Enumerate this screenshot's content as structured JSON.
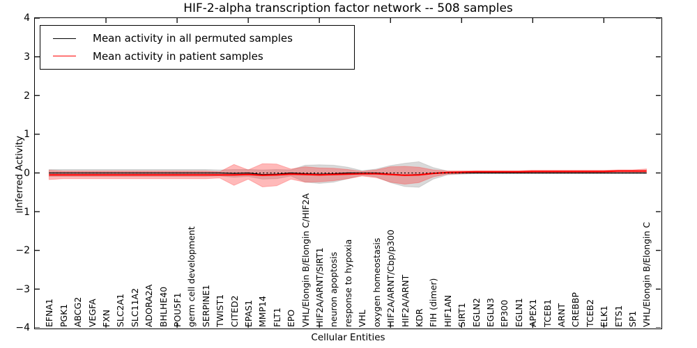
{
  "title": "HIF-2-alpha transcription factor network -- 508 samples",
  "axes": {
    "ylabel": "Inferred Activity",
    "xlabel": "Cellular Entities",
    "ytick_labels": [
      "4",
      "3",
      "2",
      "1",
      "0",
      "−1",
      "−2",
      "−3",
      "−4"
    ]
  },
  "legend": {
    "items": [
      {
        "label": "Mean activity in all permuted samples",
        "color": "#000000"
      },
      {
        "label": "Mean activity in patient samples",
        "color": "#ff0000"
      }
    ]
  },
  "chart_data": {
    "type": "line",
    "title": "HIF-2-alpha transcription factor network -- 508 samples",
    "xlabel": "Cellular Entities",
    "ylabel": "Inferred Activity",
    "ylim": [
      -4,
      4
    ],
    "yticks": [
      -4,
      -3,
      -2,
      -1,
      0,
      1,
      2,
      3,
      4
    ],
    "xtick_positions": [
      5,
      10,
      15,
      20,
      25,
      30,
      35,
      40
    ],
    "grid": false,
    "legend_position": "upper left",
    "categories": [
      "EFNA1",
      "PGK1",
      "ABCG2",
      "VEGFA",
      "FXN",
      "SLC2A1",
      "SLC11A2",
      "ADORA2A",
      "BHLHE40",
      "POU5F1",
      "germ cell development",
      "SERPINE1",
      "TWIST1",
      "CITED2",
      "EPAS1",
      "MMP14",
      "FLT1",
      "EPO",
      "VHL/Elongin B/Elongin C/HIF2A",
      "HIF2A/ARNT/SIRT1",
      "neuron apoptosis",
      "response to hypoxia",
      "VHL",
      "oxygen homeostasis",
      "HIF2A/ARNT/Cbp/p300",
      "HIF2A/ARNT",
      "KDR",
      "FIH (dimer)",
      "HIF1AN",
      "SIRT1",
      "EGLN2",
      "EGLN3",
      "EP300",
      "EGLN1",
      "APEX1",
      "TCEB1",
      "ARNT",
      "CREBBP",
      "TCEB2",
      "ELK1",
      "ETS1",
      "SP1",
      "VHL/Elongin B/Elongin C"
    ],
    "series": [
      {
        "name": "Mean activity in all permuted samples",
        "color": "#000000",
        "style": "solid",
        "values": [
          0,
          0,
          0,
          0,
          0,
          0,
          0,
          0,
          0,
          0,
          0,
          0,
          0,
          -0.01,
          0,
          -0.04,
          -0.03,
          0,
          -0.02,
          -0.03,
          -0.02,
          0,
          0,
          0,
          -0.03,
          -0.05,
          -0.04,
          -0.01,
          0,
          0,
          0,
          0,
          0,
          0,
          0,
          0,
          0,
          0,
          0,
          0,
          0,
          0,
          0
        ]
      },
      {
        "name": "Mean activity in patient samples",
        "color": "#ff0000",
        "style": "solid",
        "values": [
          -0.05,
          -0.05,
          -0.05,
          -0.05,
          -0.05,
          -0.05,
          -0.05,
          -0.05,
          -0.05,
          -0.05,
          -0.05,
          -0.05,
          -0.05,
          -0.05,
          -0.04,
          -0.06,
          -0.05,
          -0.03,
          -0.04,
          -0.05,
          -0.04,
          -0.03,
          -0.02,
          -0.02,
          -0.04,
          -0.06,
          -0.05,
          -0.01,
          0.01,
          0.02,
          0.03,
          0.03,
          0.03,
          0.03,
          0.04,
          0.04,
          0.04,
          0.04,
          0.04,
          0.04,
          0.05,
          0.05,
          0.05
        ]
      }
    ],
    "bands": [
      {
        "name": "permuted samples activity range",
        "color": "#8a8a8a",
        "opacity": 0.32,
        "center_series": 0,
        "half_widths": [
          0.09,
          0.09,
          0.09,
          0.09,
          0.09,
          0.09,
          0.09,
          0.09,
          0.09,
          0.09,
          0.09,
          0.09,
          0.08,
          0.1,
          0.09,
          0.12,
          0.12,
          0.08,
          0.22,
          0.24,
          0.22,
          0.15,
          0.06,
          0.1,
          0.22,
          0.3,
          0.33,
          0.15,
          0.05,
          0.03,
          0.02,
          0.02,
          0.02,
          0.02,
          0.02,
          0.02,
          0.02,
          0.02,
          0.02,
          0.02,
          0.02,
          0.02,
          0.02
        ]
      },
      {
        "name": "patient samples activity range",
        "color": "#ff2a2a",
        "opacity": 0.33,
        "center_series": 1,
        "half_widths": [
          0.12,
          0.1,
          0.1,
          0.1,
          0.1,
          0.1,
          0.1,
          0.1,
          0.1,
          0.1,
          0.1,
          0.1,
          0.08,
          0.27,
          0.12,
          0.3,
          0.28,
          0.13,
          0.2,
          0.18,
          0.16,
          0.12,
          0.06,
          0.1,
          0.2,
          0.23,
          0.2,
          0.09,
          0.04,
          0.035,
          0.03,
          0.03,
          0.03,
          0.03,
          0.03,
          0.03,
          0.03,
          0.03,
          0.03,
          0.03,
          0.03,
          0.03,
          0.055
        ]
      }
    ],
    "zero_line": {
      "y": 0,
      "style": "dotted",
      "color": "#000000"
    }
  }
}
